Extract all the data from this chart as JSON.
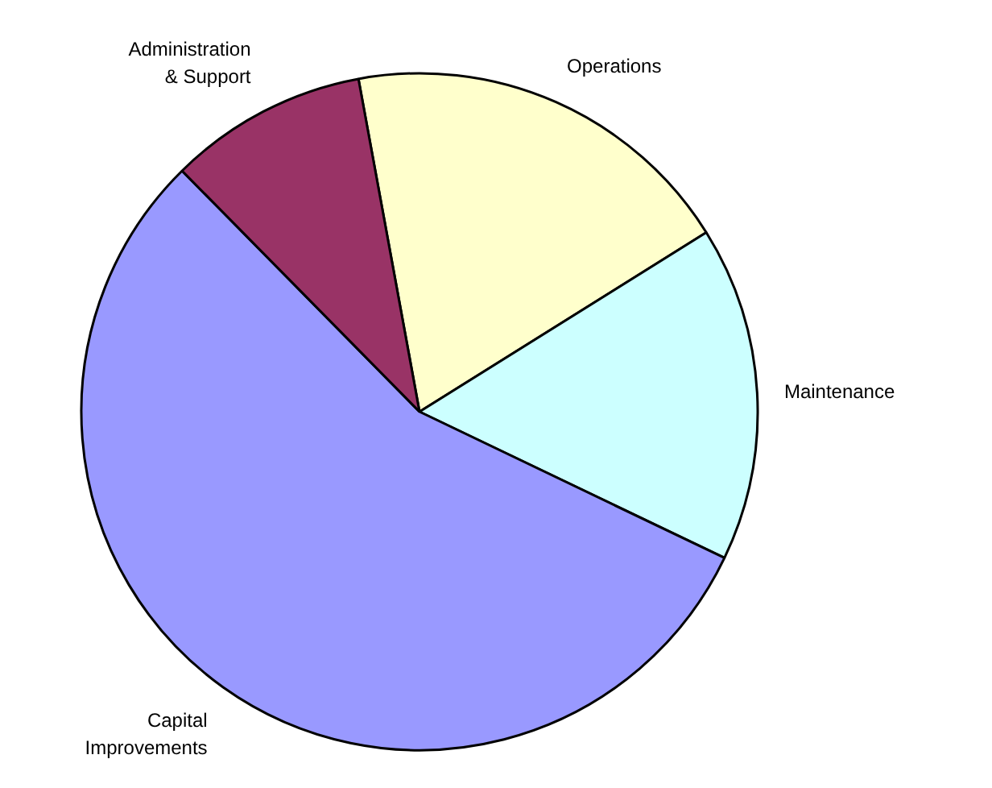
{
  "chart_data": {
    "type": "pie",
    "categories": [
      "Operations",
      "Maintenance",
      "Capital Improvements",
      "Administration & Support"
    ],
    "values": [
      19,
      16,
      55.5,
      9.5
    ],
    "colors": [
      "#ffffcc",
      "#ccffff",
      "#9999ff",
      "#993366"
    ],
    "legend": false
  }
}
